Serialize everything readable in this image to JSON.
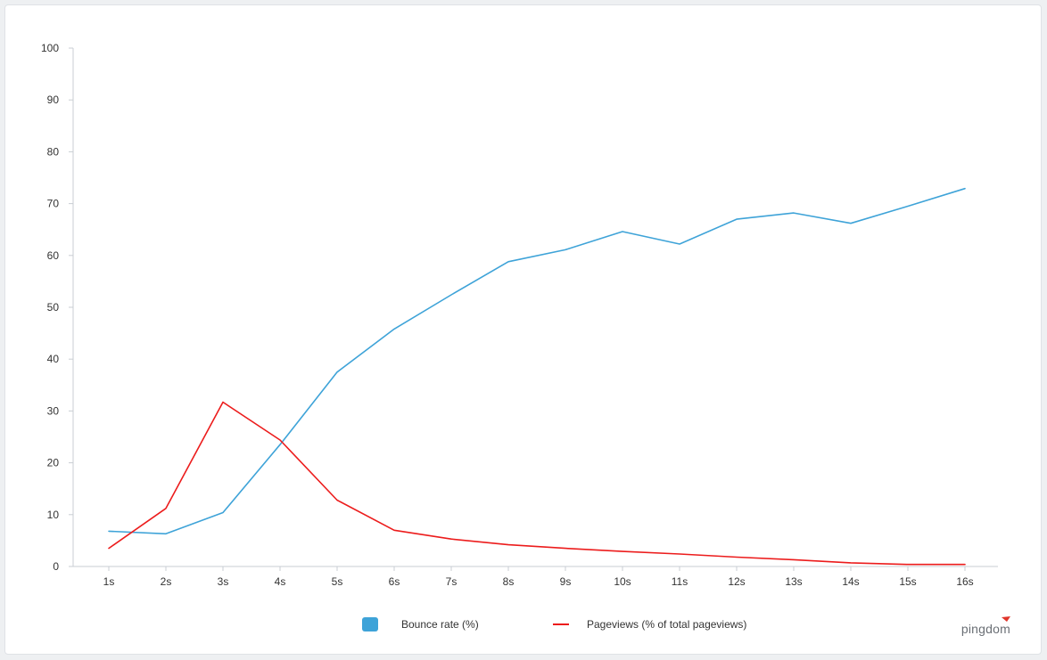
{
  "chart_data": {
    "type": "line",
    "title": "",
    "xlabel": "",
    "ylabel": "",
    "x": [
      "1s",
      "2s",
      "3s",
      "4s",
      "5s",
      "6s",
      "7s",
      "8s",
      "9s",
      "10s",
      "11s",
      "12s",
      "13s",
      "14s",
      "15s",
      "16s"
    ],
    "ylim": [
      0,
      100
    ],
    "yticks": [
      0,
      10,
      20,
      30,
      40,
      50,
      60,
      70,
      80,
      90,
      100
    ],
    "grid": false,
    "legend_position": "bottom",
    "series": [
      {
        "name": "Bounce rate  (%)",
        "color": "#3ea3d8",
        "legend_style": "box",
        "values": [
          6.8,
          6.3,
          10.4,
          23.5,
          37.5,
          45.8,
          52.4,
          58.8,
          61.1,
          64.6,
          62.2,
          67.0,
          68.2,
          66.2,
          69.5,
          72.9
        ]
      },
      {
        "name": "Pageviews (% of total pageviews)",
        "color": "#ec1c1c",
        "legend_style": "line",
        "values": [
          3.5,
          11.2,
          31.7,
          24.4,
          12.8,
          7.0,
          5.3,
          4.2,
          3.5,
          2.9,
          2.4,
          1.8,
          1.3,
          0.7,
          0.4,
          0.4
        ]
      }
    ]
  },
  "brand": {
    "name": "pingdom",
    "accent_color": "#e0352b"
  }
}
